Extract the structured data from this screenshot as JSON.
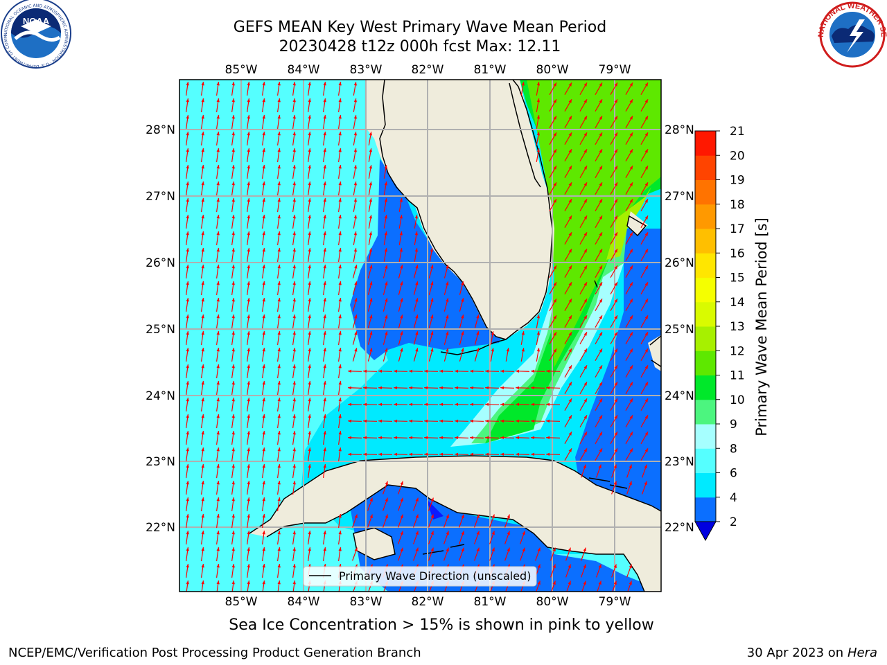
{
  "title": {
    "line1": "GEFS MEAN Key West Primary Wave Mean Period",
    "line2": "20230428 t12z 000h fcst   Max: 12.11"
  },
  "map": {
    "longitude_labels": [
      "85°W",
      "84°W",
      "83°W",
      "82°W",
      "81°W",
      "80°W",
      "79°W"
    ],
    "latitude_labels": [
      "28°N",
      "27°N",
      "26°N",
      "25°N",
      "24°N",
      "23°N",
      "22°N"
    ],
    "land_color": "#efecdc",
    "coast_color": "#000000",
    "arrow_color": "#ff0000",
    "grid_color": "#b0b0b0",
    "legend_label": "Primary Wave Direction (unscaled)"
  },
  "colorbar": {
    "label": "Primary Wave Mean Period [s]",
    "ticks": [
      "2",
      "4",
      "6",
      "8",
      "9",
      "10",
      "11",
      "12",
      "13",
      "14",
      "15",
      "16",
      "17",
      "18",
      "19",
      "20",
      "21"
    ],
    "colors": [
      "#0a1aff",
      "#0b6fff",
      "#00eaff",
      "#55ffff",
      "#a6ffff",
      "#4cf57f",
      "#00e82a",
      "#5ee800",
      "#a7f000",
      "#d9fb00",
      "#f5ff00",
      "#ffe600",
      "#ffbf00",
      "#ff9900",
      "#ff7300",
      "#ff4400",
      "#ff1800",
      "#ff0000"
    ],
    "extend_color": "#0000e0"
  },
  "logos": {
    "noaa_text": "NOAA",
    "noaa_ring": "NATIONAL OCEANIC AND ATMOSPHERIC ADMINISTRATION · U.S. DEPARTMENT OF COMMERCE",
    "nws_ring": "NATIONAL WEATHER SERVICE"
  },
  "subnote": "Sea Ice Concentration > 15% is shown in pink to yellow",
  "footer": {
    "left": "NCEP/EMC/Verification Post Processing Product Generation Branch",
    "right_prefix": "30 Apr 2023 on ",
    "right_host": "Hera"
  }
}
